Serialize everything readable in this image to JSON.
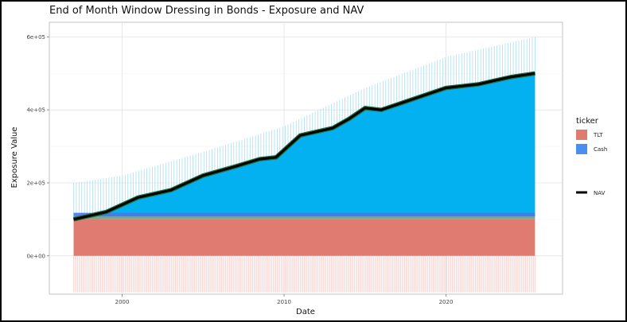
{
  "chart_data": {
    "type": "area",
    "title": "End of Month Window Dressing in Bonds - Exposure and NAV",
    "xlabel": "Date",
    "ylabel": "Exposure Value",
    "xlim": [
      1995.5,
      2027.2
    ],
    "ylim": [
      -105000,
      640000
    ],
    "x_ticks": [
      2000,
      2010,
      2020
    ],
    "x_tick_labels": [
      "2000",
      "2010",
      "2020"
    ],
    "y_ticks": [
      0,
      200000,
      400000,
      600000
    ],
    "y_tick_labels": [
      "0e+00",
      "2e+05",
      "4e+05",
      "6e+05"
    ],
    "grid": true,
    "legend_position": "right",
    "legend": {
      "fill_title": "ticker",
      "fill_entries": [
        {
          "label": "TLT",
          "color": "#E07B72"
        },
        {
          "label": "Cash",
          "color": "#4A8EF0"
        }
      ],
      "line_entries": [
        {
          "label": "NAV",
          "color": "#000000"
        }
      ]
    },
    "colors": {
      "tlt": "#E07B72",
      "tlt_band": "#7FA88A",
      "cash": "#03B0F0",
      "cash_base": "#4A78E8",
      "spike": "#A9DFF2",
      "negative": "#F6C9C5",
      "nav": "#000000",
      "nav_glow": "#1F6B3A"
    },
    "x": [
      1997.0,
      1999.0,
      2001.0,
      2003.0,
      2005.0,
      2007.0,
      2008.5,
      2009.5,
      2011.0,
      2013.0,
      2014.0,
      2015.0,
      2016.0,
      2017.0,
      2019.0,
      2020.0,
      2021.0,
      2022.0,
      2023.0,
      2024.0,
      2025.5
    ],
    "series": [
      {
        "name": "TLT",
        "values": [
          100000,
          100000,
          100000,
          100000,
          100000,
          100000,
          100000,
          100000,
          100000,
          100000,
          100000,
          100000,
          100000,
          100000,
          100000,
          100000,
          100000,
          100000,
          100000,
          100000,
          100000
        ]
      },
      {
        "name": "Cash",
        "values": [
          0,
          20000,
          60000,
          80000,
          120000,
          145000,
          165000,
          170000,
          230000,
          250000,
          275000,
          305000,
          300000,
          315000,
          345000,
          360000,
          365000,
          370000,
          380000,
          390000,
          400000
        ]
      },
      {
        "name": "NAV",
        "values": [
          100000,
          120000,
          160000,
          180000,
          220000,
          245000,
          265000,
          270000,
          330000,
          350000,
          375000,
          405000,
          400000,
          415000,
          445000,
          460000,
          465000,
          470000,
          480000,
          490000,
          500000
        ]
      }
    ],
    "gross_exposure_peaks": [
      {
        "x": 1997.0,
        "value": 200000
      },
      {
        "x": 2000.0,
        "value": 220000
      },
      {
        "x": 2005.0,
        "value": 285000
      },
      {
        "x": 2010.0,
        "value": 355000
      },
      {
        "x": 2015.0,
        "value": 460000
      },
      {
        "x": 2020.0,
        "value": 545000
      },
      {
        "x": 2025.5,
        "value": 600000
      }
    ],
    "negative_exposure": {
      "x_start": 1997.0,
      "x_end": 2025.5,
      "value": -100000
    }
  }
}
